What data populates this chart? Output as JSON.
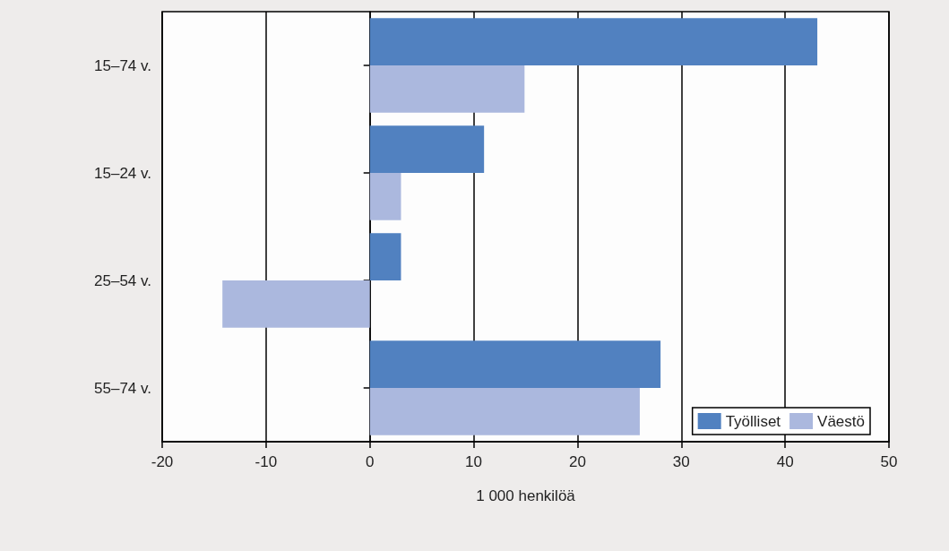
{
  "chart_data": {
    "type": "bar",
    "orientation": "horizontal",
    "xlabel": "1 000 henkilöä",
    "categories": [
      "15–74 v.",
      "15–24 v.",
      "25–54 v.",
      "55–74 v."
    ],
    "series": [
      {
        "name": "Työlliset",
        "color": "#5181c0",
        "values": [
          43.1,
          11,
          3,
          28
        ]
      },
      {
        "name": "Väestö",
        "color": "#abb8de",
        "values": [
          14.9,
          3,
          -14.2,
          26
        ]
      }
    ],
    "xlim": [
      -20,
      50
    ],
    "xticks": [
      -20,
      -10,
      0,
      10,
      20,
      30,
      40,
      50
    ],
    "grid": "x",
    "legend": "bottom right"
  }
}
